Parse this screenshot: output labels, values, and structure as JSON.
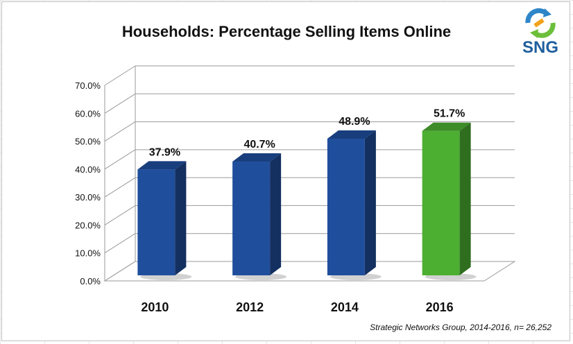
{
  "chart_data": {
    "type": "bar",
    "title": "Households: Percentage Selling Items Online",
    "categories": [
      "2010",
      "2012",
      "2014",
      "2016"
    ],
    "values": [
      37.9,
      40.7,
      48.9,
      51.7
    ],
    "value_labels": [
      "37.9%",
      "40.7%",
      "48.9%",
      "51.7%"
    ],
    "bar_colors": [
      "#1f4e9c",
      "#1f4e9c",
      "#1f4e9c",
      "#4caf32"
    ],
    "ylim": [
      0,
      70
    ],
    "yticks": [
      "0.0%",
      "10.0%",
      "20.0%",
      "30.0%",
      "40.0%",
      "50.0%",
      "60.0%",
      "70.0%"
    ],
    "xlabel": "",
    "ylabel": "",
    "grid": true,
    "legend": "none",
    "style": "3d-column"
  },
  "source_note": "Strategic Networks Group, 2014-2016, n= 26,252",
  "logo": {
    "text": "SNG",
    "icon": "recycle-arrows-icon"
  },
  "colors": {
    "bar_primary": "#1f4e9c",
    "bar_highlight": "#4caf32",
    "logo_text": "#1f5f9e"
  }
}
